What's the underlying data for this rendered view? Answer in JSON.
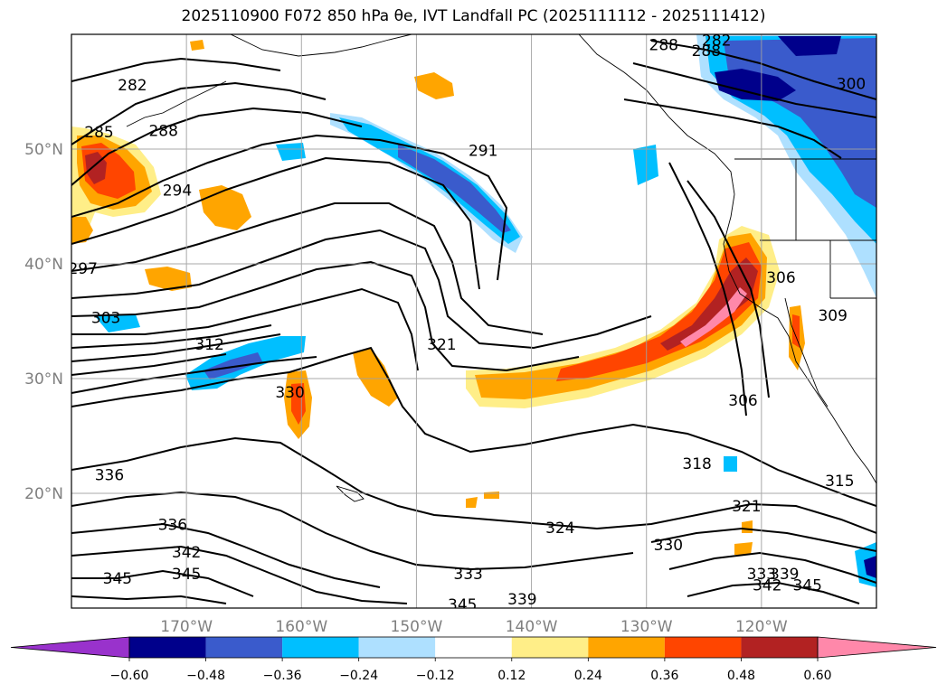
{
  "title": "2025110900 F072 850 hPa θe, IVT Landfall PC (2025111112 - 2025111412)",
  "map": {
    "lon_range": [
      -180,
      -110
    ],
    "lat_range": [
      10,
      60
    ],
    "lon_ticks": [
      {
        "value": -170,
        "label": "170°W"
      },
      {
        "value": -160,
        "label": "160°W"
      },
      {
        "value": -150,
        "label": "150°W"
      },
      {
        "value": -140,
        "label": "140°W"
      },
      {
        "value": -130,
        "label": "130°W"
      },
      {
        "value": -120,
        "label": "120°W"
      }
    ],
    "lat_ticks": [
      {
        "value": 20,
        "label": "20°N"
      },
      {
        "value": 30,
        "label": "30°N"
      },
      {
        "value": 40,
        "label": "40°N"
      },
      {
        "value": 50,
        "label": "50°N"
      }
    ],
    "grid": true
  },
  "contour_labels": [
    {
      "text": "282",
      "lon": -174.7,
      "lat": 55.6
    },
    {
      "text": "285",
      "lon": -177.6,
      "lat": 51.5
    },
    {
      "text": "288",
      "lon": -172.0,
      "lat": 51.6
    },
    {
      "text": "294",
      "lon": -170.8,
      "lat": 46.4
    },
    {
      "text": "297",
      "lon": -179.0,
      "lat": 39.6
    },
    {
      "text": "303",
      "lon": -177.0,
      "lat": 35.3
    },
    {
      "text": "312",
      "lon": -168.0,
      "lat": 33.0
    },
    {
      "text": "321",
      "lon": -147.8,
      "lat": 33.0
    },
    {
      "text": "330",
      "lon": -161.0,
      "lat": 28.8
    },
    {
      "text": "336",
      "lon": -176.7,
      "lat": 21.6
    },
    {
      "text": "336",
      "lon": -171.2,
      "lat": 17.3
    },
    {
      "text": "342",
      "lon": -170.0,
      "lat": 14.9
    },
    {
      "text": "345",
      "lon": -176.0,
      "lat": 12.6
    },
    {
      "text": "345",
      "lon": -170.0,
      "lat": 13.0
    },
    {
      "text": "345",
      "lon": -146.0,
      "lat": 10.3
    },
    {
      "text": "333",
      "lon": -145.5,
      "lat": 13.0
    },
    {
      "text": "339",
      "lon": -140.8,
      "lat": 10.8
    },
    {
      "text": "291",
      "lon": -144.2,
      "lat": 49.9
    },
    {
      "text": "288",
      "lon": -128.5,
      "lat": 59.1
    },
    {
      "text": "282",
      "lon": -123.9,
      "lat": 59.5
    },
    {
      "text": "288",
      "lon": -124.8,
      "lat": 58.6
    },
    {
      "text": "300",
      "lon": -112.2,
      "lat": 55.7
    },
    {
      "text": "306",
      "lon": -118.3,
      "lat": 38.8
    },
    {
      "text": "309",
      "lon": -113.8,
      "lat": 35.5
    },
    {
      "text": "306",
      "lon": -121.6,
      "lat": 28.1
    },
    {
      "text": "318",
      "lon": -125.6,
      "lat": 22.6
    },
    {
      "text": "315",
      "lon": -113.2,
      "lat": 21.1
    },
    {
      "text": "321",
      "lon": -121.3,
      "lat": 18.9
    },
    {
      "text": "324",
      "lon": -137.5,
      "lat": 17.0
    },
    {
      "text": "330",
      "lon": -128.1,
      "lat": 15.5
    },
    {
      "text": "333",
      "lon": -120.0,
      "lat": 13.0
    },
    {
      "text": "339",
      "lon": -118.0,
      "lat": 13.0
    },
    {
      "text": "342",
      "lon": -119.5,
      "lat": 12.0
    },
    {
      "text": "345",
      "lon": -116.0,
      "lat": 12.0
    }
  ],
  "colorbar": {
    "extend": "both",
    "under_color": "#9932cc",
    "over_color": "#ff88aa",
    "colors": [
      "#00008b",
      "#3a5bcc",
      "#00bfff",
      "#aee0ff",
      "#ffffff",
      "#ffee88",
      "#ffa500",
      "#ff4500",
      "#b22222",
      "#ff88aa"
    ],
    "boundaries": [
      -0.6,
      -0.48,
      -0.36,
      -0.24,
      -0.12,
      0.12,
      0.24,
      0.36,
      0.48,
      0.6
    ],
    "tick_labels": [
      "−0.60",
      "−0.48",
      "−0.36",
      "−0.24",
      "−0.12",
      "0.12",
      "0.24",
      "0.36",
      "0.48",
      "0.60"
    ]
  }
}
